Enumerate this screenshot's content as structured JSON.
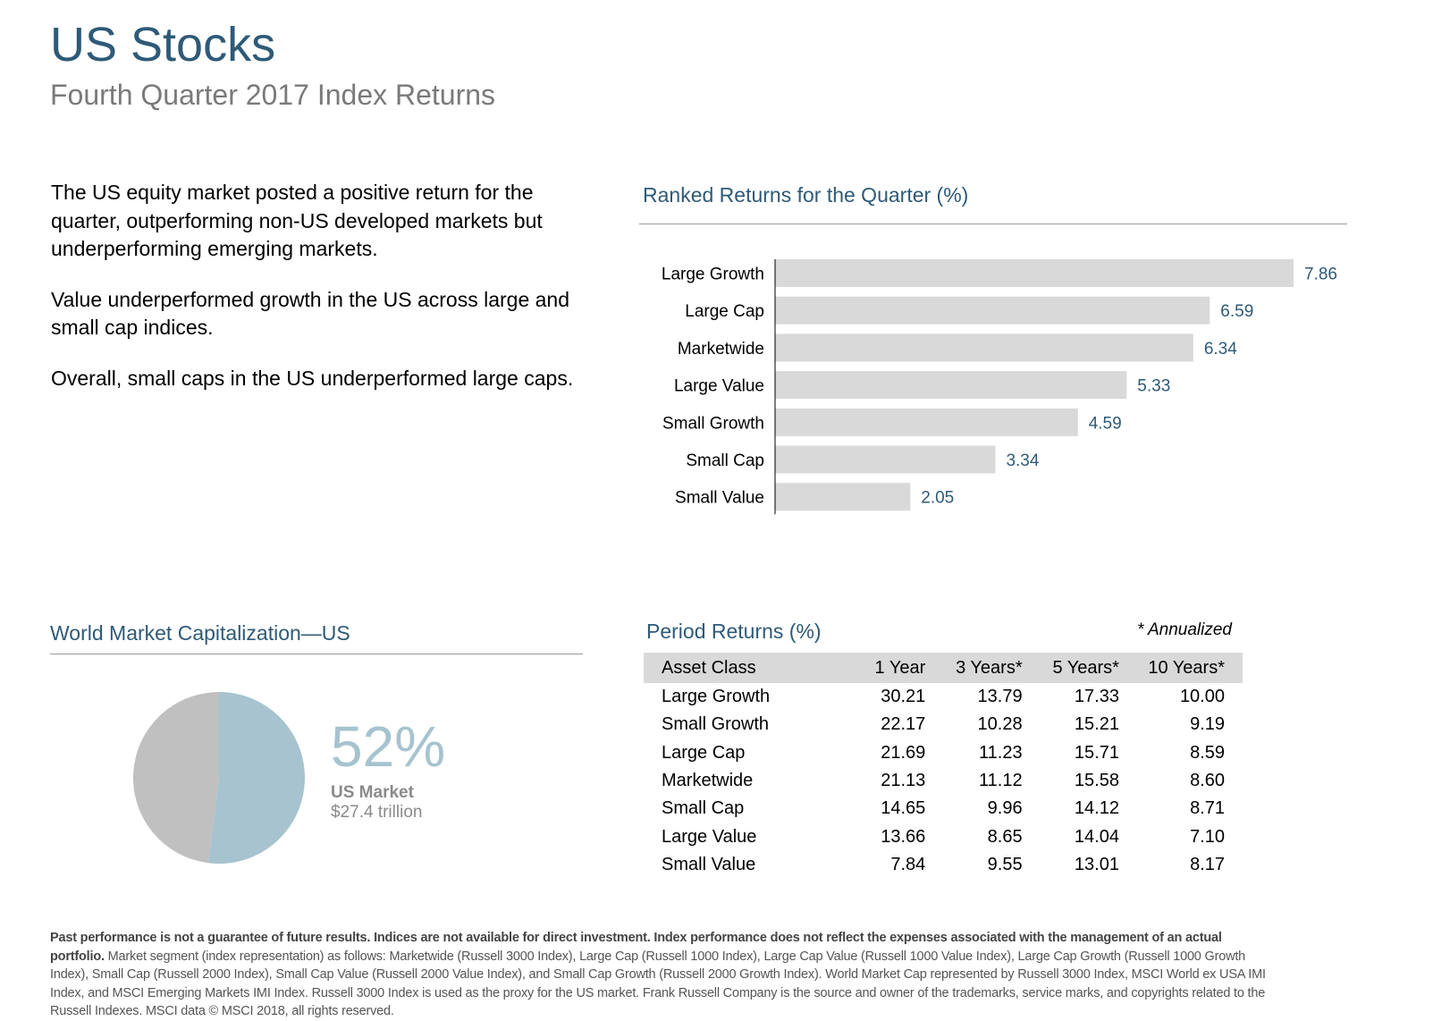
{
  "header": {
    "title": "US Stocks",
    "subtitle": "Fourth Quarter 2017 Index Returns"
  },
  "intro": {
    "p1": "The US equity market posted a positive return for the quarter, outperforming non-US developed markets but underperforming emerging markets.",
    "p2": "Value underperformed growth in the US across large and small cap indices.",
    "p3": "Overall, small caps in the US underperformed large caps."
  },
  "ranked": {
    "title": "Ranked Returns for the Quarter (%)"
  },
  "world": {
    "title": "World Market Capitalization—US",
    "percent": "52%",
    "label": "US Market",
    "amount": "$27.4 trillion"
  },
  "period": {
    "title": "Period Returns (%)",
    "note": "* Annualized",
    "headers": [
      "Asset Class",
      "1 Year",
      "3 Years*",
      "5 Years*",
      "10 Years*"
    ],
    "rows": [
      [
        "Large Growth",
        "30.21",
        "13.79",
        "17.33",
        "10.00"
      ],
      [
        "Small Growth",
        "22.17",
        "10.28",
        "15.21",
        "9.19"
      ],
      [
        "Large Cap",
        "21.69",
        "11.23",
        "15.71",
        "8.59"
      ],
      [
        "Marketwide",
        "21.13",
        "11.12",
        "15.58",
        "8.60"
      ],
      [
        "Small Cap",
        "14.65",
        "9.96",
        "14.12",
        "8.71"
      ],
      [
        "Large Value",
        "13.66",
        "8.65",
        "14.04",
        "7.10"
      ],
      [
        "Small Value",
        "7.84",
        "9.55",
        "13.01",
        "8.17"
      ]
    ]
  },
  "footer": {
    "bold": "Past performance is not a guarantee of future results. Indices are not available for direct investment. Index performance does not reflect the expenses associated with the management of an actual portfolio.",
    "text": "Market segment (index representation) as follows: Marketwide (Russell 3000 Index), Large Cap (Russell 1000 Index), Large Cap Value (Russell 1000 Value Index), Large Cap Growth (Russell 1000 Growth Index), Small Cap (Russell 2000 Index), Small Cap Value (Russell 2000 Value Index), and Small Cap Growth (Russell 2000 Growth Index). World Market Cap represented by Russell 3000 Index, MSCI World ex USA IMI Index, and MSCI Emerging Markets IMI Index. Russell 3000 Index is used as the proxy for the US market. Frank Russell Company is the source and owner of the trademarks, service marks, and copyrights related to the Russell Indexes. MSCI data © MSCI 2018, all rights reserved."
  },
  "colors": {
    "accent": "#2e5a78",
    "bar": "#d9d9d9",
    "pie_us": "#a6c3cf",
    "pie_rest": "#c0c0c0"
  },
  "chart_data": [
    {
      "type": "bar",
      "orientation": "horizontal",
      "title": "Ranked Returns for the Quarter (%)",
      "categories": [
        "Large Growth",
        "Large Cap",
        "Marketwide",
        "Large Value",
        "Small Growth",
        "Small Cap",
        "Small Value"
      ],
      "values": [
        7.86,
        6.59,
        6.34,
        5.33,
        4.59,
        3.34,
        2.05
      ],
      "value_labels": [
        "7.86",
        "6.59",
        "6.34",
        "5.33",
        "4.59",
        "3.34",
        "2.05"
      ],
      "xlim": [
        0,
        8
      ],
      "grid": false
    },
    {
      "type": "pie",
      "title": "World Market Capitalization—US",
      "values": [
        52,
        48
      ],
      "start_angle": 0,
      "direction": "clockwise"
    }
  ]
}
